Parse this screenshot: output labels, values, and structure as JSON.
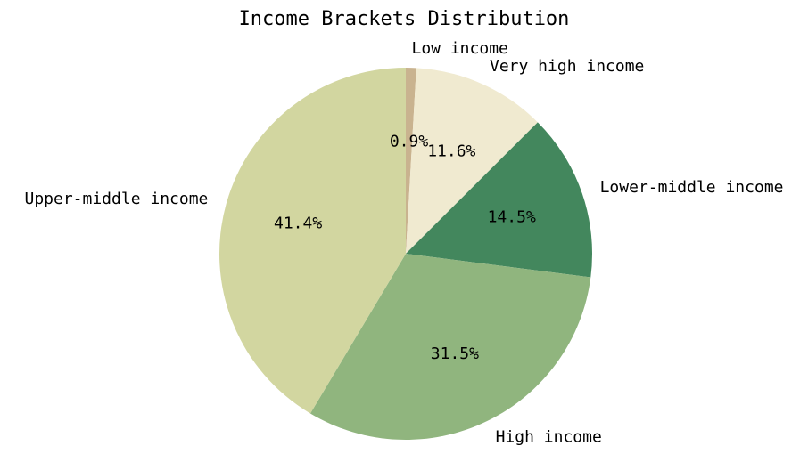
{
  "chart_data": {
    "type": "pie",
    "title": "Income Brackets Distribution",
    "categories": [
      "Low income",
      "Very high income",
      "Lower-middle income",
      "High income",
      "Upper-middle income"
    ],
    "values": [
      0.9,
      11.6,
      14.5,
      31.5,
      41.4
    ],
    "percent_labels": [
      "0.9%",
      "11.6%",
      "14.5%",
      "31.5%",
      "41.4%"
    ],
    "colors": [
      "#c9b38f",
      "#f0ead0",
      "#43875d",
      "#90b57e",
      "#d2d6a0"
    ],
    "start_angle_deg": 90,
    "direction": "clockwise",
    "legend": "none"
  }
}
